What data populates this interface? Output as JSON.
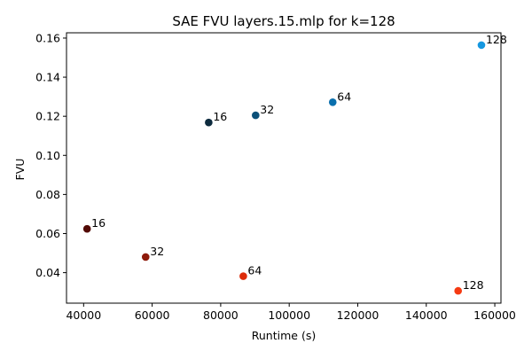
{
  "chart_data": {
    "type": "scatter",
    "title": "SAE FVU layers.15.mlp for k=128",
    "xlabel": "Runtime (s)",
    "ylabel": "FVU",
    "xlim": [
      35000,
      161800
    ],
    "ylim": [
      0.0244,
      0.1627
    ],
    "x_ticks": [
      40000,
      60000,
      80000,
      100000,
      120000,
      140000,
      160000
    ],
    "x_tick_labels": [
      "40000",
      "60000",
      "80000",
      "100000",
      "120000",
      "140000",
      "160000"
    ],
    "y_ticks": [
      0.04,
      0.06,
      0.08,
      0.1,
      0.12,
      0.14,
      0.16
    ],
    "y_tick_labels": [
      "0.04",
      "0.06",
      "0.08",
      "0.10",
      "0.12",
      "0.14",
      "0.16"
    ],
    "grid": false,
    "legend": "none",
    "series": [
      {
        "points": [
          {
            "x": 76500,
            "y": 0.1168,
            "label": "16",
            "color": "#0d2b3e"
          },
          {
            "x": 90200,
            "y": 0.1205,
            "label": "32",
            "color": "#0b5079"
          },
          {
            "x": 112700,
            "y": 0.1272,
            "label": "64",
            "color": "#0a6fad"
          },
          {
            "x": 156100,
            "y": 0.1564,
            "label": "128",
            "color": "#1597e0"
          }
        ]
      },
      {
        "points": [
          {
            "x": 41000,
            "y": 0.0624,
            "label": "16",
            "color": "#520a05"
          },
          {
            "x": 58100,
            "y": 0.048,
            "label": "32",
            "color": "#8e1a0a"
          },
          {
            "x": 86600,
            "y": 0.0382,
            "label": "64",
            "color": "#dd2c0a"
          },
          {
            "x": 149300,
            "y": 0.0307,
            "label": "128",
            "color": "#f53a12"
          }
        ]
      }
    ]
  }
}
